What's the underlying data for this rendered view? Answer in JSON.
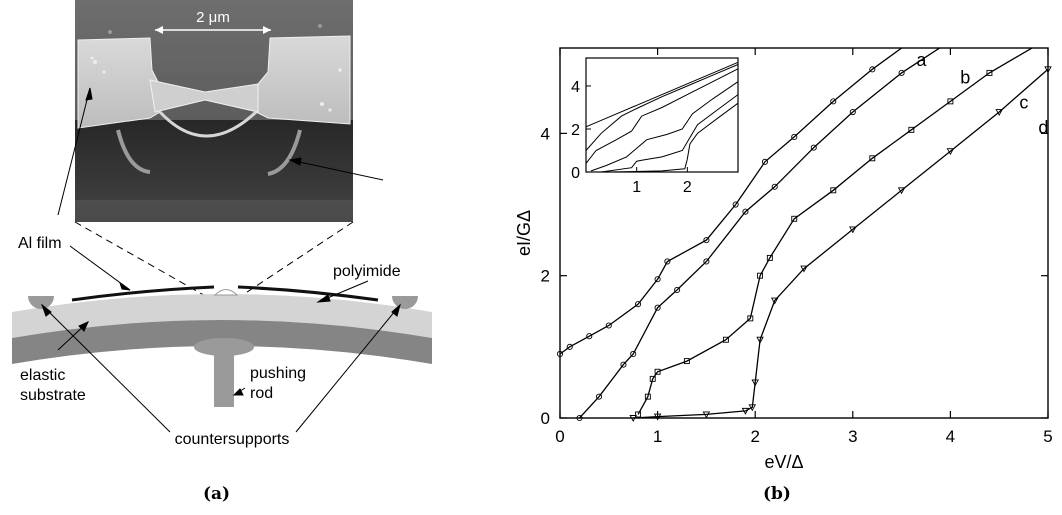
{
  "panel_a": {
    "caption": "(a)",
    "scale_bar": "2 μm",
    "labels": {
      "al_film": "Al film",
      "polyimide": "polyimide",
      "pushing_rod": "pushing\nrod",
      "elastic_substrate": "elastic\nsubstrate",
      "countersupports": "countersupports"
    }
  },
  "panel_b": {
    "caption": "(b)",
    "colors": {
      "line": "#000000",
      "frame": "#000000"
    }
  },
  "chart_data": [
    {
      "type": "line",
      "name": "main",
      "xlabel": "eV/Δ",
      "ylabel": "eI/GΔ",
      "xlim": [
        0,
        5
      ],
      "ylim": [
        0,
        5.2
      ],
      "xticks": [
        0,
        1,
        2,
        3,
        4,
        5
      ],
      "yticks": [
        0,
        2,
        4
      ],
      "grid": false,
      "series": [
        {
          "name": "a",
          "marker": "circle",
          "x": [
            0,
            0.1,
            0.3,
            0.5,
            0.8,
            1.0,
            1.1,
            1.5,
            1.8,
            2.1,
            2.4,
            2.8,
            3.2,
            3.6
          ],
          "y": [
            0.9,
            1.0,
            1.15,
            1.3,
            1.6,
            1.95,
            2.2,
            2.5,
            3.0,
            3.6,
            3.95,
            4.45,
            4.9,
            5.3
          ]
        },
        {
          "name": "b",
          "marker": "circle",
          "x": [
            0.2,
            0.4,
            0.65,
            0.75,
            1.0,
            1.2,
            1.5,
            1.9,
            2.2,
            2.6,
            3.0,
            3.5,
            4.0
          ],
          "y": [
            0.0,
            0.3,
            0.75,
            0.9,
            1.55,
            1.8,
            2.2,
            2.9,
            3.25,
            3.8,
            4.3,
            4.85,
            5.3
          ]
        },
        {
          "name": "c",
          "marker": "square",
          "x": [
            0.8,
            0.9,
            0.95,
            1.0,
            1.3,
            1.7,
            1.95,
            2.05,
            2.15,
            2.4,
            2.8,
            3.2,
            3.6,
            4.0,
            4.4,
            4.9
          ],
          "y": [
            0.05,
            0.3,
            0.55,
            0.65,
            0.8,
            1.1,
            1.4,
            2.0,
            2.25,
            2.8,
            3.2,
            3.65,
            4.05,
            4.45,
            4.85,
            5.25
          ]
        },
        {
          "name": "d",
          "marker": "triangle",
          "x": [
            0.75,
            1.0,
            1.5,
            1.9,
            1.97,
            2.0,
            2.05,
            2.2,
            2.5,
            3.0,
            3.5,
            4.0,
            4.5,
            5.0
          ],
          "y": [
            0.0,
            0.02,
            0.05,
            0.1,
            0.15,
            0.5,
            1.1,
            1.65,
            2.1,
            2.65,
            3.2,
            3.75,
            4.3,
            4.9
          ]
        }
      ]
    },
    {
      "type": "line",
      "name": "inset",
      "xlim": [
        0,
        3
      ],
      "ylim": [
        0,
        5.3
      ],
      "xticks": [
        1,
        2
      ],
      "yticks": [
        0,
        2,
        4
      ],
      "series": [
        {
          "x": [
            0,
            0.5,
            1,
            1.5,
            2,
            2.5,
            3
          ],
          "y": [
            2.1,
            2.6,
            3.1,
            3.6,
            4.1,
            4.6,
            5.1
          ]
        },
        {
          "x": [
            0,
            0.3,
            0.7,
            1.0,
            1.5,
            2,
            2.5,
            3
          ],
          "y": [
            1.0,
            1.8,
            2.6,
            2.95,
            3.5,
            4.0,
            4.5,
            5.0
          ]
        },
        {
          "x": [
            0,
            0.2,
            0.6,
            0.9,
            1.1,
            1.5,
            2,
            2.5,
            3
          ],
          "y": [
            0.4,
            1.0,
            1.5,
            1.9,
            2.6,
            3.0,
            3.6,
            4.2,
            4.8
          ]
        },
        {
          "x": [
            0.1,
            0.4,
            0.8,
            1.0,
            1.2,
            1.6,
            1.9,
            2.1,
            2.5,
            3
          ],
          "y": [
            0.05,
            0.3,
            0.7,
            1.1,
            1.5,
            1.75,
            2.0,
            2.7,
            3.4,
            4.2
          ]
        },
        {
          "x": [
            0.3,
            0.9,
            1.0,
            1.1,
            1.5,
            1.9,
            2.05,
            2.2,
            2.6,
            3
          ],
          "y": [
            0.0,
            0.2,
            0.5,
            0.55,
            0.7,
            1.0,
            1.6,
            2.2,
            2.9,
            3.6
          ]
        },
        {
          "x": [
            0.5,
            1.5,
            1.95,
            2.0,
            2.05,
            2.2,
            2.6,
            3
          ],
          "y": [
            0.0,
            0.05,
            0.15,
            0.6,
            1.3,
            1.8,
            2.5,
            3.2
          ]
        }
      ]
    }
  ]
}
